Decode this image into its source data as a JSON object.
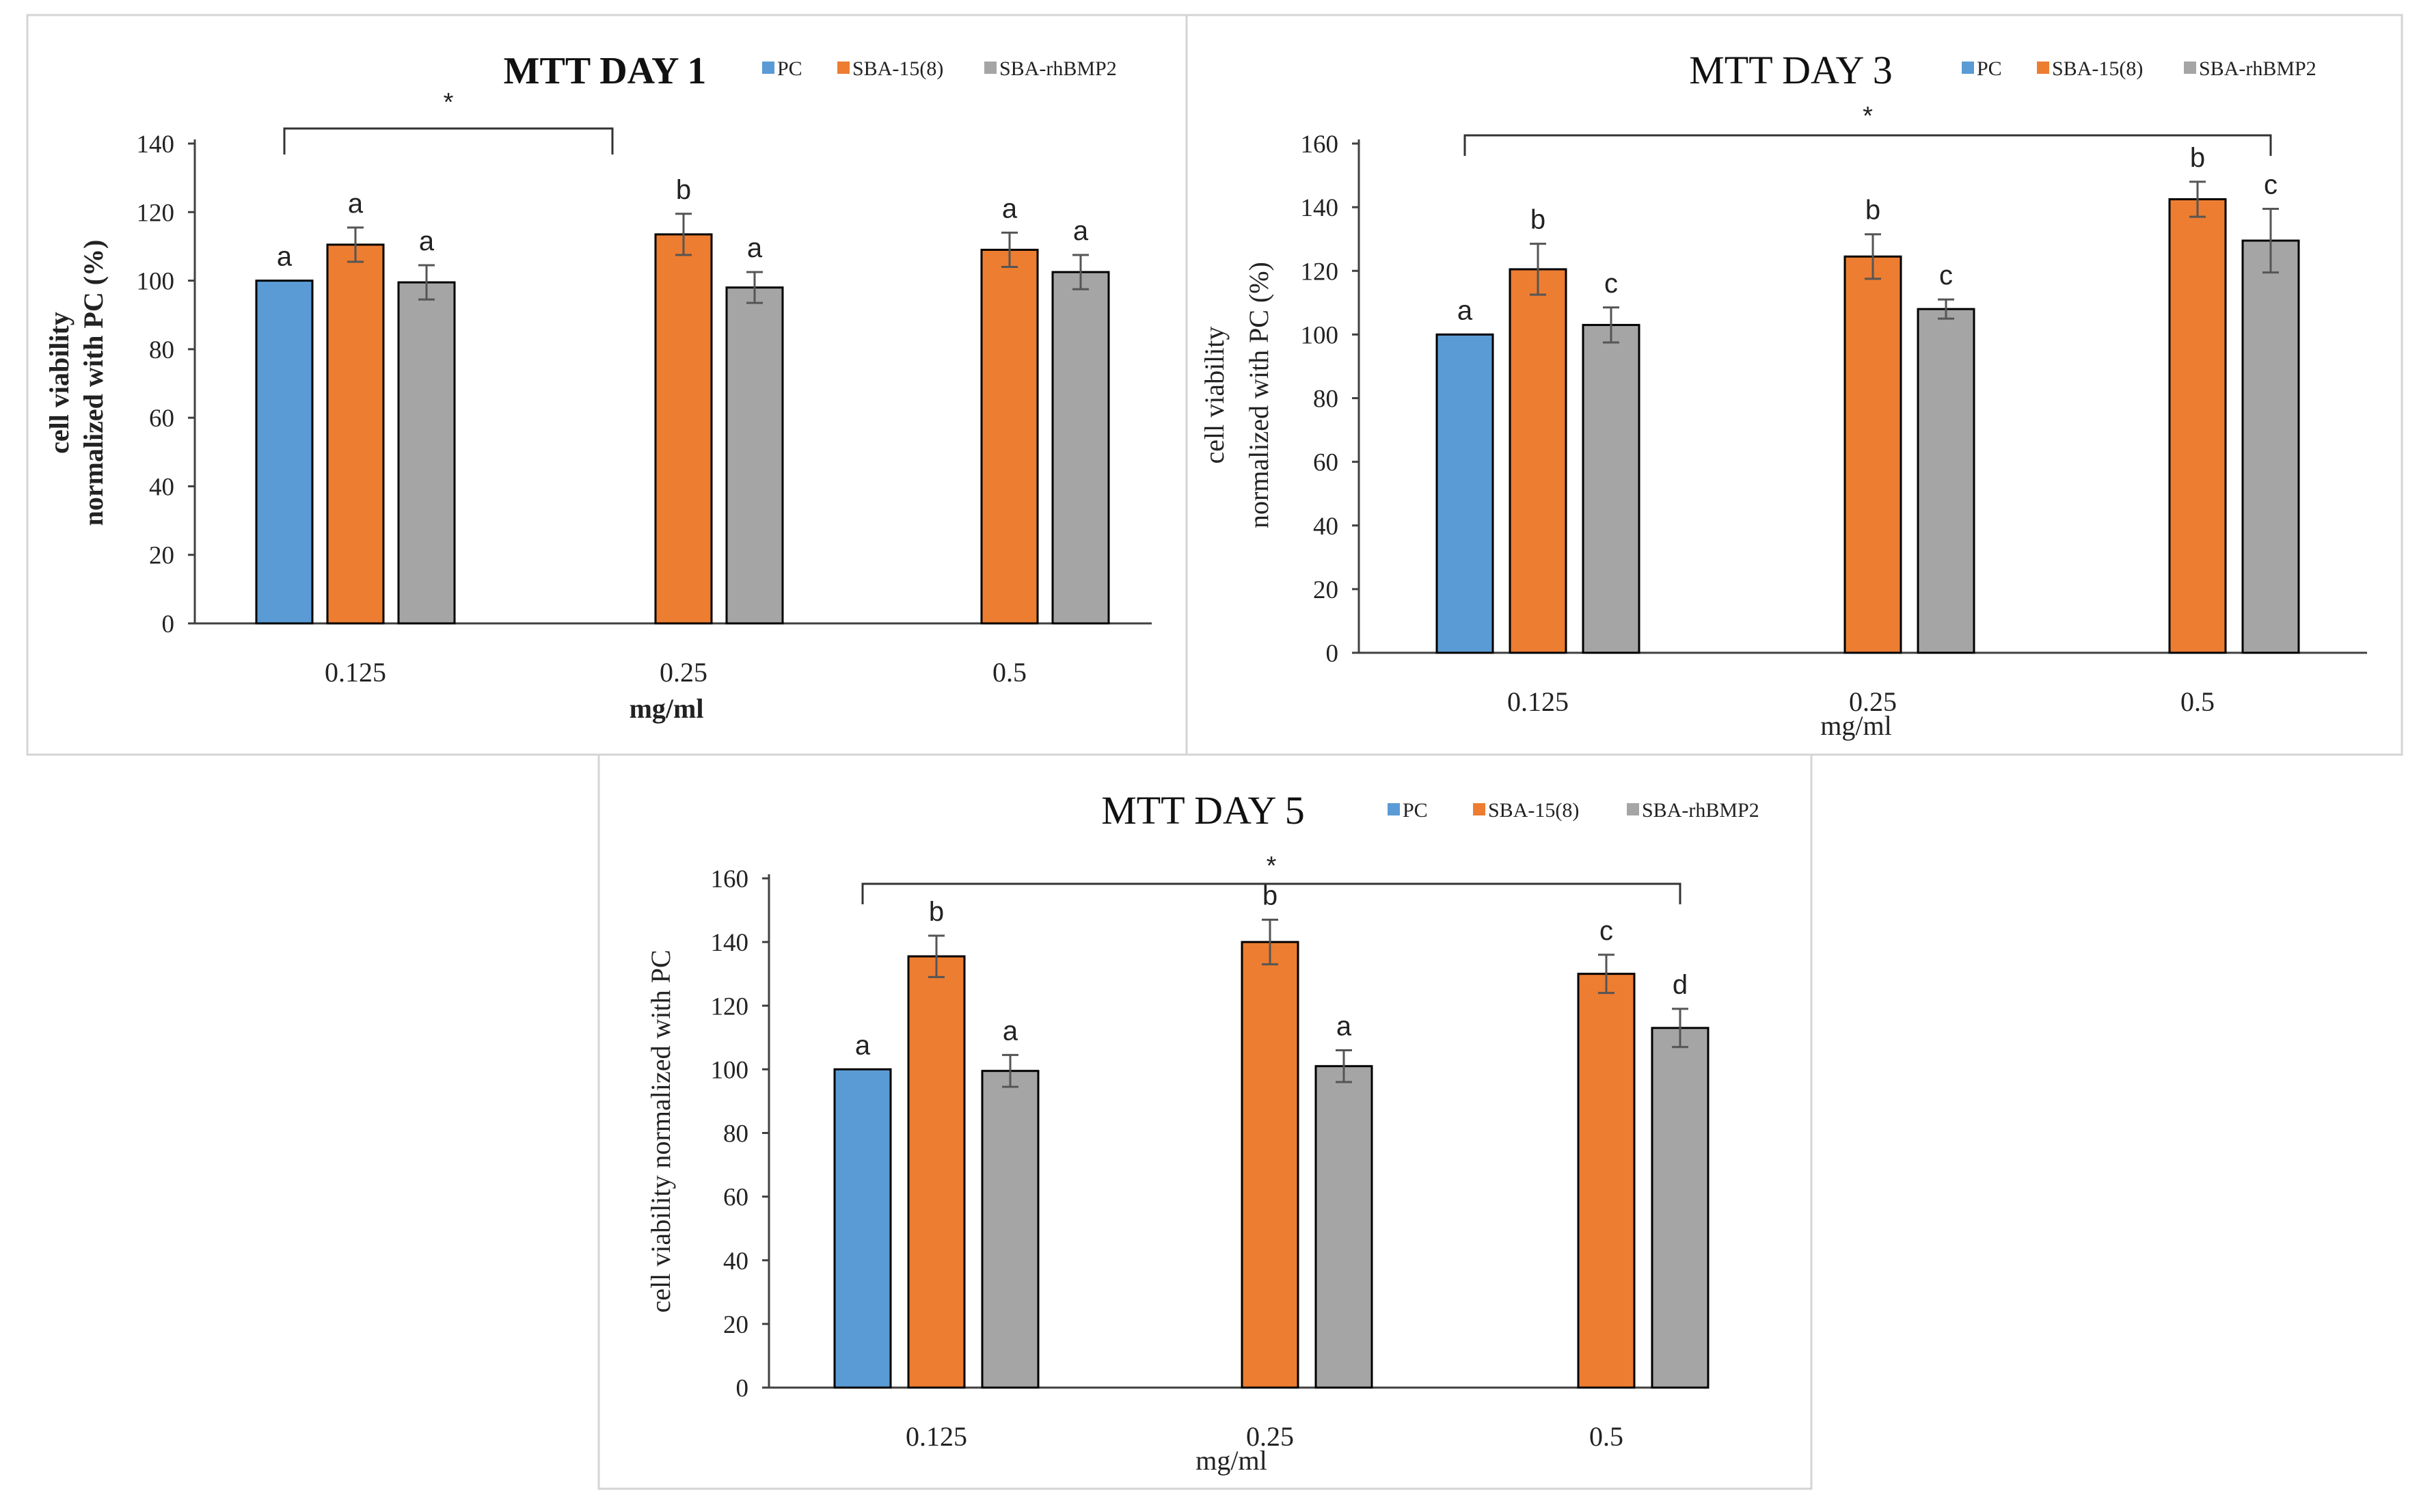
{
  "figure": {
    "colors": {
      "PC": "#5b9bd5",
      "SBA-15(8)": "#ed7d31",
      "SBA-rhBMP2": "#a5a5a5",
      "axis": "#404040",
      "frame": "#d4d4d4"
    }
  },
  "chart_data": [
    {
      "type": "bar",
      "title": "MTT DAY 1",
      "title_bold": true,
      "xlabel": "mg/ml",
      "ylabel": [
        "cell viability",
        "normalized with PC (%)"
      ],
      "ylabel_bold": true,
      "categories": [
        "0.125",
        "0.25",
        "0.5"
      ],
      "ylim": [
        0,
        140
      ],
      "yticks": [
        0,
        20,
        40,
        60,
        80,
        100,
        120,
        140
      ],
      "series": [
        {
          "name": "PC",
          "color": "#5b9bd5",
          "values": [
            100,
            null,
            null
          ],
          "errors": [
            0,
            null,
            null
          ],
          "letters": [
            "a",
            null,
            null
          ]
        },
        {
          "name": "SBA-15(8)",
          "color": "#ed7d31",
          "values": [
            110.5,
            113.5,
            109
          ],
          "errors": [
            5,
            6,
            5
          ],
          "letters": [
            "a",
            "b",
            "a"
          ]
        },
        {
          "name": "SBA-rhBMP2",
          "color": "#a5a5a5",
          "values": [
            99.5,
            98,
            102.5
          ],
          "errors": [
            5,
            4.5,
            5
          ],
          "letters": [
            "a",
            "a",
            "a"
          ]
        }
      ],
      "significance": {
        "label": "*",
        "from_category": "0.125",
        "to_category": "0.25"
      },
      "legend_position": "top-right"
    },
    {
      "type": "bar",
      "title": "MTT DAY 3",
      "title_bold": false,
      "xlabel": "mg/ml",
      "ylabel": [
        "cell viability",
        "normalized with PC (%)"
      ],
      "ylabel_bold": false,
      "categories": [
        "0.125",
        "0.25",
        "0.5"
      ],
      "ylim": [
        0,
        160
      ],
      "yticks": [
        0,
        20,
        40,
        60,
        80,
        100,
        120,
        140,
        160
      ],
      "series": [
        {
          "name": "PC",
          "color": "#5b9bd5",
          "values": [
            100,
            null,
            null
          ],
          "errors": [
            0,
            null,
            null
          ],
          "letters": [
            "a",
            null,
            null
          ]
        },
        {
          "name": "SBA-15(8)",
          "color": "#ed7d31",
          "values": [
            120.5,
            124.5,
            142.5
          ],
          "errors": [
            8,
            7,
            5.5
          ],
          "letters": [
            "b",
            "b",
            "b"
          ]
        },
        {
          "name": "SBA-rhBMP2",
          "color": "#a5a5a5",
          "values": [
            103,
            108,
            129.5
          ],
          "errors": [
            5.5,
            3,
            10
          ],
          "letters": [
            "c",
            "c",
            "c"
          ]
        }
      ],
      "significance": {
        "label": "*",
        "from_category": "0.125",
        "to_category": "0.5"
      },
      "legend_position": "top-right"
    },
    {
      "type": "bar",
      "title": "MTT DAY 5",
      "title_bold": false,
      "xlabel": "mg/ml",
      "ylabel": [
        "cell viability normalized with PC"
      ],
      "ylabel_bold": false,
      "categories": [
        "0.125",
        "0.25",
        "0.5"
      ],
      "ylim": [
        0,
        160
      ],
      "yticks": [
        0,
        20,
        40,
        60,
        80,
        100,
        120,
        140,
        160
      ],
      "series": [
        {
          "name": "PC",
          "color": "#5b9bd5",
          "values": [
            100,
            null,
            null
          ],
          "errors": [
            0,
            null,
            null
          ],
          "letters": [
            "a",
            null,
            null
          ]
        },
        {
          "name": "SBA-15(8)",
          "color": "#ed7d31",
          "values": [
            135.5,
            140,
            130
          ],
          "errors": [
            6.5,
            7,
            6
          ],
          "letters": [
            "b",
            "b",
            "c"
          ]
        },
        {
          "name": "SBA-rhBMP2",
          "color": "#a5a5a5",
          "values": [
            99.5,
            101,
            113
          ],
          "errors": [
            5,
            5,
            6
          ],
          "letters": [
            "a",
            "a",
            "d"
          ]
        }
      ],
      "significance": {
        "label": "*",
        "from_category": "0.125",
        "to_category": "0.5"
      },
      "legend_position": "top-right"
    }
  ]
}
